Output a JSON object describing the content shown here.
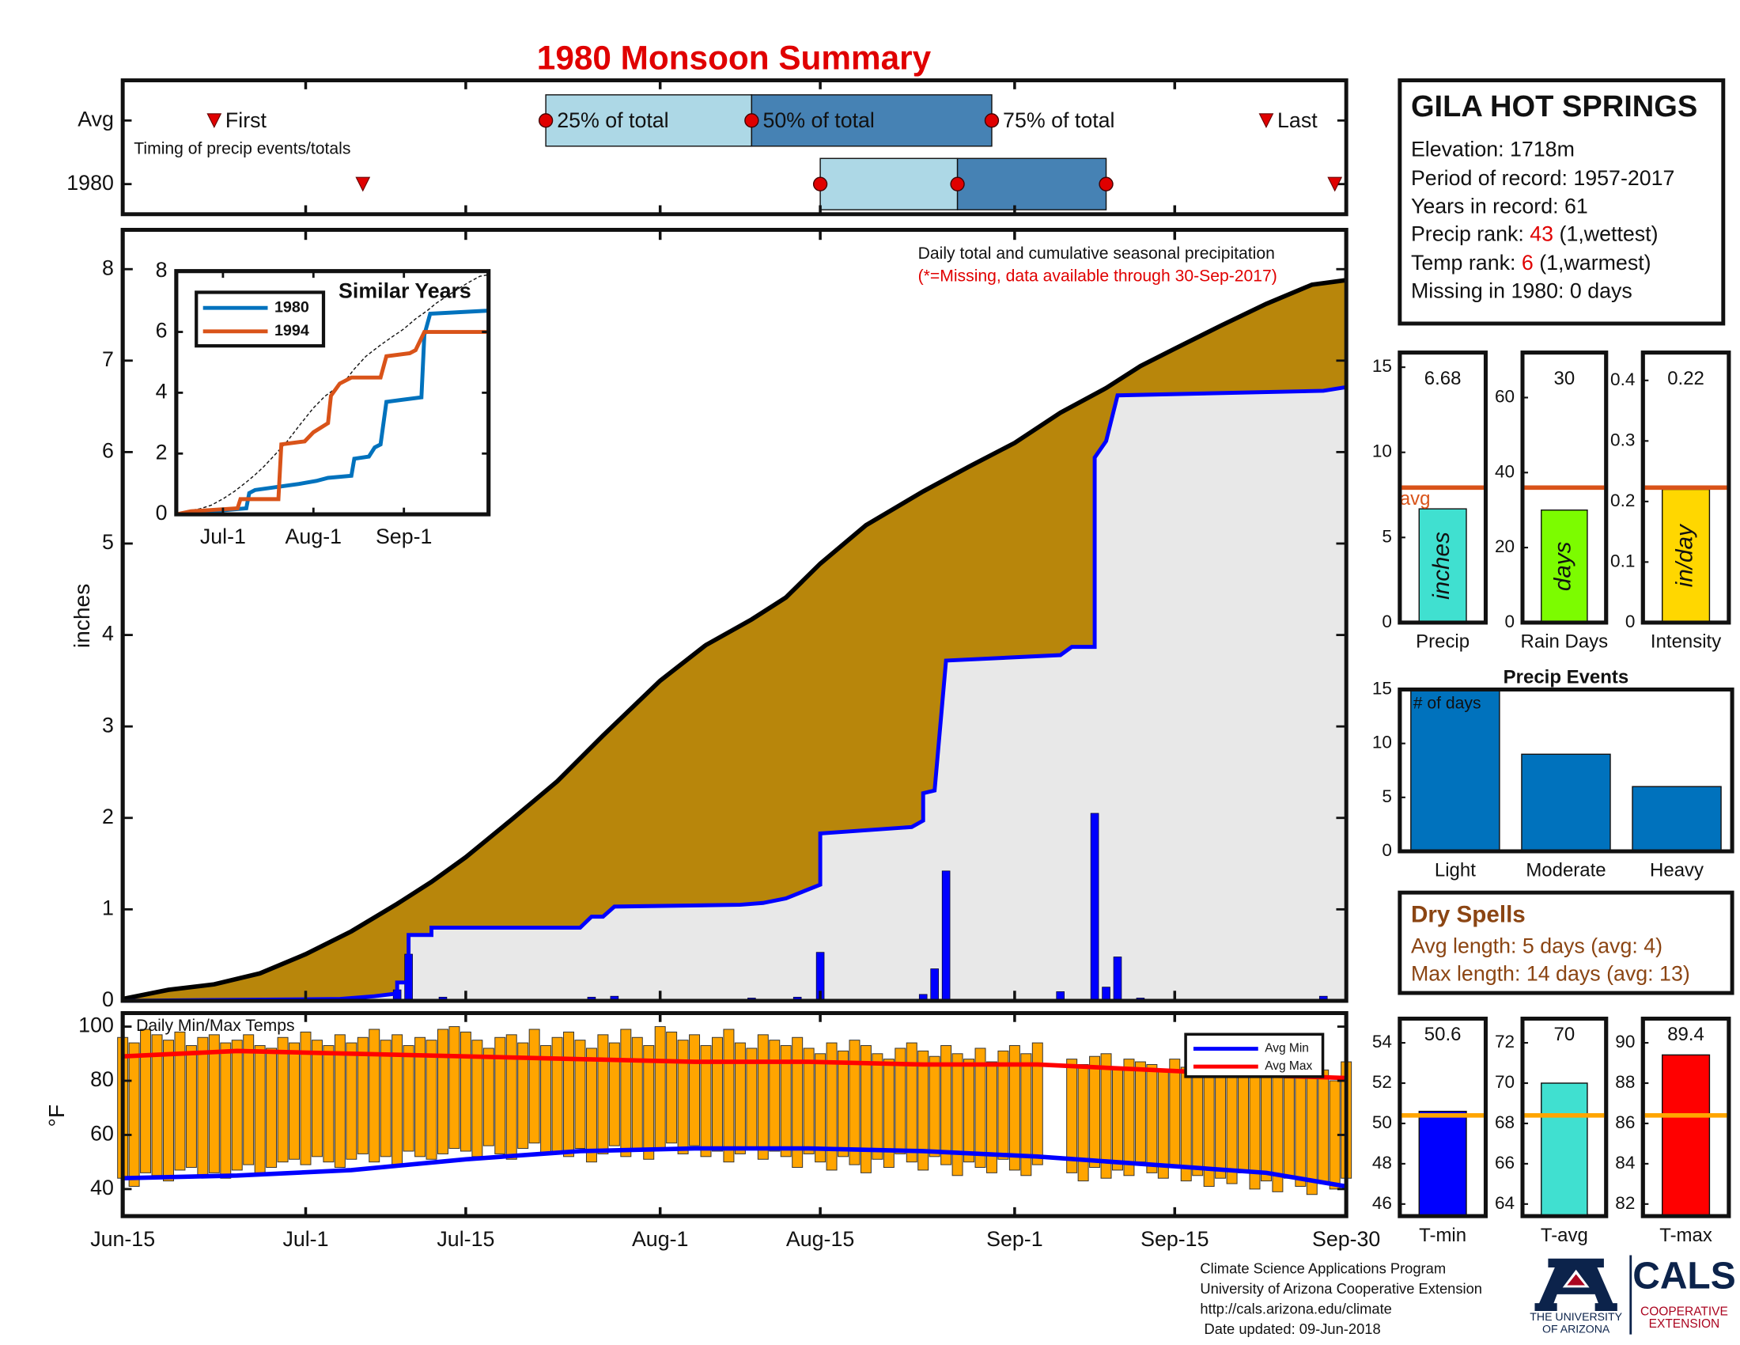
{
  "chart_data": [
    {
      "type": "timing",
      "title": "1980 Monsoon Summary",
      "subtitle": "Timing of precip events/totals",
      "xlim": [
        0,
        107
      ],
      "markers": [
        "First",
        "25% of total",
        "50% of total",
        "75% of total",
        "Last"
      ],
      "rows": [
        {
          "name": "Avg",
          "values": [
            8,
            37,
            55,
            76,
            100
          ]
        },
        {
          "name": "1980",
          "values": [
            21,
            61,
            73,
            86,
            106
          ]
        }
      ],
      "colors": {
        "first_half": "#add8e6",
        "second_half": "#4682b4",
        "marker": "#e00000"
      }
    },
    {
      "type": "area",
      "subtitle": "Daily total and cumulative seasonal precipitation",
      "note": "(*=Missing, data available through 30-Sep-2017)",
      "ylabel": "inches",
      "xlim": [
        0,
        107
      ],
      "ylim": [
        0,
        8.43
      ],
      "yticks": [
        0,
        1,
        2,
        3,
        4,
        5,
        6,
        7,
        8
      ],
      "average": {
        "color": "#b8860b",
        "line_color": "#000000",
        "x": [
          0,
          4,
          8,
          12,
          16,
          20,
          24,
          27,
          30,
          34,
          38,
          42,
          47,
          51,
          55,
          58,
          61,
          65,
          70,
          74,
          78,
          82,
          86,
          89,
          92,
          96,
          100,
          104,
          107
        ],
        "values": [
          0.02,
          0.12,
          0.18,
          0.3,
          0.51,
          0.76,
          1.06,
          1.3,
          1.57,
          1.98,
          2.4,
          2.9,
          3.5,
          3.89,
          4.17,
          4.41,
          4.78,
          5.2,
          5.57,
          5.84,
          6.1,
          6.43,
          6.7,
          6.94,
          7.13,
          7.38,
          7.62,
          7.83,
          7.88
        ]
      },
      "cumulative": {
        "color": "#0000ff",
        "fill": "#e8e8e8",
        "x": [
          0,
          19,
          22,
          24,
          24,
          25,
          25,
          27,
          27,
          40,
          41,
          42,
          43,
          54,
          56,
          58,
          61,
          61,
          69,
          70,
          70,
          71,
          72,
          82,
          83,
          85,
          85,
          86,
          87,
          105,
          107
        ],
        "values": [
          0,
          0.02,
          0.05,
          0.08,
          0.2,
          0.2,
          0.72,
          0.72,
          0.8,
          0.8,
          0.92,
          0.92,
          1.03,
          1.05,
          1.07,
          1.12,
          1.27,
          1.83,
          1.9,
          1.97,
          2.27,
          2.3,
          3.72,
          3.78,
          3.87,
          3.87,
          5.94,
          6.12,
          6.62,
          6.67,
          6.71
        ]
      },
      "daily": {
        "color": "#0000ff",
        "x": [
          24,
          25,
          28,
          41,
          43,
          55,
          59,
          61,
          70,
          71,
          72,
          82,
          85,
          86,
          87,
          89,
          105
        ],
        "values": [
          0.12,
          0.51,
          0.04,
          0.04,
          0.05,
          0.03,
          0.04,
          0.53,
          0.07,
          0.35,
          1.42,
          0.1,
          2.05,
          0.15,
          0.48,
          0.03,
          0.05
        ]
      }
    },
    {
      "type": "line",
      "title": "Similar Years",
      "xlim": [
        0,
        107
      ],
      "ylim": [
        0,
        8
      ],
      "yticks": [
        0,
        2,
        4,
        6,
        8
      ],
      "xticks": [
        {
          "value": 16,
          "label": "Jul-1"
        },
        {
          "value": 47,
          "label": "Aug-1"
        },
        {
          "value": 78,
          "label": "Sep-1"
        }
      ],
      "series": [
        {
          "name": "1980",
          "color": "#0072bd",
          "x": [
            0,
            24,
            25,
            27,
            42,
            48,
            52,
            60,
            61,
            66,
            68,
            70,
            72,
            84,
            85,
            87,
            107
          ],
          "values": [
            0,
            0.2,
            0.7,
            0.8,
            1.0,
            1.1,
            1.2,
            1.27,
            1.83,
            1.9,
            2.2,
            2.3,
            3.7,
            3.85,
            5.9,
            6.6,
            6.7
          ]
        },
        {
          "name": "1994",
          "color": "#d95319",
          "x": [
            0,
            5,
            21,
            22,
            35,
            36,
            44,
            47,
            52,
            53,
            56,
            60,
            70,
            72,
            80,
            82,
            85,
            107
          ],
          "values": [
            0,
            0.1,
            0.2,
            0.5,
            0.5,
            2.3,
            2.4,
            2.7,
            3.0,
            3.9,
            4.3,
            4.5,
            4.5,
            5.2,
            5.3,
            5.4,
            6.0,
            6.0
          ]
        }
      ]
    },
    {
      "type": "bar",
      "categories": [
        "Precip"
      ],
      "values": [
        6.68
      ],
      "color": "#40e0d0",
      "bar_label": "inches",
      "average": 7.93,
      "average_label": "avg",
      "average_color": "#d95319",
      "ylim": [
        0,
        15.86
      ],
      "yticks": [
        0,
        5,
        10,
        15
      ]
    },
    {
      "type": "bar",
      "categories": [
        "Rain Days"
      ],
      "values": [
        30
      ],
      "color": "#7cfc00",
      "bar_label": "days",
      "average": 36,
      "average_color": "#d95319",
      "ylim": [
        0,
        72
      ],
      "yticks": [
        0,
        20,
        40,
        60
      ]
    },
    {
      "type": "bar",
      "categories": [
        "Intensity"
      ],
      "values": [
        0.22
      ],
      "color": "#ffd700",
      "bar_label": "in/day",
      "average": 0.223,
      "average_color": "#d95319",
      "ylim": [
        0,
        0.446
      ],
      "yticks": [
        0,
        0.1,
        0.2,
        0.3,
        0.4
      ]
    },
    {
      "type": "bar",
      "title": "Precip Events",
      "annotation": "# of days",
      "categories": [
        "Light",
        "Moderate",
        "Heavy"
      ],
      "values": [
        15,
        9,
        6
      ],
      "color": "#0072bd",
      "ylim": [
        0,
        15
      ],
      "yticks": [
        0,
        5,
        10,
        15
      ]
    },
    {
      "type": "range",
      "title": "Daily Min/Max Temps",
      "ylabel": "°F",
      "xlim": [
        0,
        107
      ],
      "ylim": [
        30,
        105
      ],
      "yticks": [
        40,
        60,
        80,
        100
      ],
      "xticks": [
        {
          "value": 0,
          "label": "Jun-15"
        },
        {
          "value": 16,
          "label": "Jul-1"
        },
        {
          "value": 30,
          "label": "Jul-15"
        },
        {
          "value": 47,
          "label": "Aug-1"
        },
        {
          "value": 61,
          "label": "Aug-15"
        },
        {
          "value": 78,
          "label": "Sep-1"
        },
        {
          "value": 92,
          "label": "Sep-15"
        },
        {
          "value": 107,
          "label": "Sep-30"
        }
      ],
      "color": "#ffa500",
      "high": [
        96,
        94,
        99,
        97,
        95,
        98,
        93,
        96,
        97,
        94,
        95,
        97,
        93,
        92,
        96,
        94,
        98,
        95,
        93,
        97,
        94,
        96,
        99,
        95,
        97,
        93,
        96,
        95,
        99,
        100,
        98,
        95,
        92,
        96,
        97,
        94,
        99,
        93,
        96,
        98,
        95,
        92,
        97,
        94,
        99,
        96,
        93,
        100,
        98,
        95,
        97,
        93,
        96,
        99,
        94,
        92,
        97,
        95,
        93,
        96,
        92,
        90,
        94,
        91,
        95,
        93,
        90,
        88,
        92,
        94,
        91,
        89,
        93,
        90,
        88,
        92,
        87,
        91,
        93,
        90,
        94,
        null,
        null,
        88,
        86,
        89,
        90,
        85,
        88,
        87,
        86,
        84,
        88,
        85,
        83,
        86,
        84,
        87,
        82,
        85,
        84,
        83,
        81,
        86,
        82,
        84,
        80,
        87
      ],
      "low": [
        44,
        41,
        46,
        45,
        43,
        47,
        48,
        45,
        46,
        44,
        47,
        49,
        46,
        48,
        50,
        51,
        49,
        52,
        50,
        48,
        51,
        53,
        50,
        52,
        49,
        54,
        52,
        51,
        53,
        55,
        54,
        52,
        56,
        53,
        51,
        55,
        57,
        53,
        54,
        52,
        55,
        50,
        53,
        56,
        52,
        54,
        51,
        55,
        57,
        53,
        56,
        52,
        54,
        50,
        53,
        55,
        51,
        54,
        52,
        48,
        53,
        50,
        47,
        52,
        49,
        46,
        51,
        48,
        53,
        50,
        47,
        52,
        49,
        45,
        50,
        48,
        46,
        51,
        47,
        45,
        49,
        null,
        null,
        46,
        43,
        48,
        44,
        47,
        45,
        50,
        46,
        44,
        48,
        43,
        45,
        41,
        44,
        42,
        46,
        40,
        43,
        39,
        44,
        41,
        38,
        42,
        40,
        44
      ],
      "series": [
        {
          "name": "Avg Min",
          "color": "#0000ff",
          "x": [
            0,
            10,
            20,
            30,
            40,
            50,
            60,
            70,
            80,
            90,
            100,
            107
          ],
          "values": [
            44,
            45,
            47,
            51,
            54,
            55,
            55,
            54,
            52,
            49,
            46,
            41
          ]
        },
        {
          "name": "Avg Max",
          "color": "#ff0000",
          "x": [
            0,
            10,
            20,
            30,
            40,
            50,
            60,
            70,
            80,
            90,
            100,
            107
          ],
          "values": [
            89,
            91,
            90,
            89,
            88,
            87,
            87,
            86,
            86,
            84,
            82,
            81
          ]
        }
      ]
    },
    {
      "type": "bar",
      "categories": [
        "T-min"
      ],
      "values": [
        50.6
      ],
      "color": "#0000ff",
      "average": 50.4,
      "average_color": "#ffa500",
      "ylim": [
        45.4,
        55.2
      ],
      "yticks": [
        46,
        48,
        50,
        52,
        54
      ]
    },
    {
      "type": "bar",
      "categories": [
        "T-avg"
      ],
      "values": [
        70
      ],
      "color": "#40e0d0",
      "average": 68.4,
      "average_color": "#ffa500",
      "ylim": [
        63.4,
        73.2
      ],
      "yticks": [
        64,
        66,
        68,
        70,
        72
      ]
    },
    {
      "type": "bar",
      "categories": [
        "T-max"
      ],
      "values": [
        89.4
      ],
      "color": "#ff0000",
      "average": 86.4,
      "average_color": "#ffa500",
      "ylim": [
        81.4,
        91.2
      ],
      "yticks": [
        82,
        84,
        86,
        88,
        90
      ]
    }
  ],
  "station": {
    "name": "GILA HOT SPRINGS",
    "elevation": "Elevation: 1718m",
    "period": "Period of record: 1957-2017",
    "years": "Years in record: 61",
    "precip_rank": {
      "label": "Precip rank: ",
      "value": 43,
      "note": " (1,wettest)"
    },
    "temp_rank": {
      "label": "Temp rank: ",
      "value": 6,
      "note": " (1,warmest)"
    },
    "missing": "Missing in 1980: 0 days"
  },
  "dry_spells": {
    "title": "Dry Spells",
    "avg": "Avg length: 5 days (avg: 4)",
    "max": "Max length: 14 days (avg: 13)"
  },
  "footer": {
    "lines": [
      "Climate Science Applications Program",
      "University of Arizona Cooperative Extension",
      "http://cals.arizona.edu/climate",
      " Date updated: 09-Jun-2018"
    ],
    "logo": {
      "university": [
        "THE UNIVERSITY",
        "OF ARIZONA"
      ],
      "cals": "CALS",
      "extension": [
        "COOPERATIVE",
        "EXTENSION"
      ]
    }
  }
}
